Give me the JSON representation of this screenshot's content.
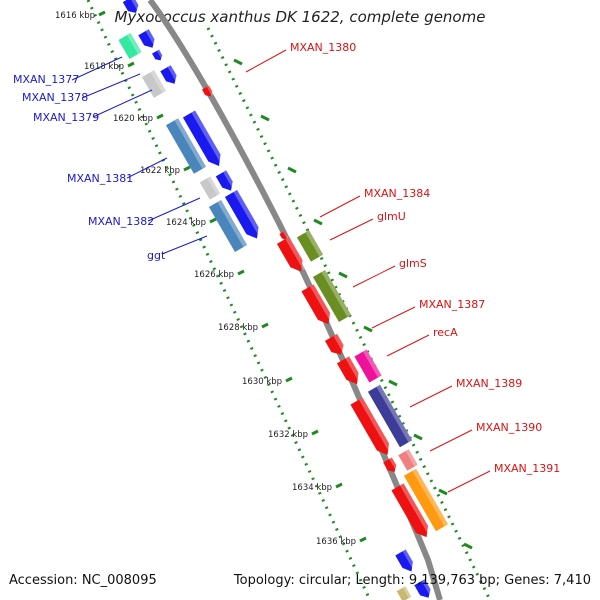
{
  "title": "Myxococcus xanthus DK 1622, complete genome",
  "footer": {
    "accession": "Accession: NC_008095",
    "summary": "Topology: circular; Length: 9,139,763 bp; Genes: 7,410"
  },
  "ruler": [
    "1616 kbp",
    "1618 kbp",
    "1620 kbp",
    "1622 kbp",
    "1624 kbp",
    "1626 kbp",
    "1628 kbp",
    "1630 kbp",
    "1632 kbp",
    "1634 kbp",
    "1636 kbp"
  ],
  "left_gene_labels": [
    "MXAN_1377",
    "MXAN_1378",
    "MXAN_1379",
    "MXAN_1381",
    "MXAN_1382",
    "ggt"
  ],
  "right_gene_labels": [
    "MXAN_1380",
    "MXAN_1384",
    "glmU",
    "glmS",
    "MXAN_1387",
    "recA",
    "MXAN_1389",
    "MXAN_1390",
    "MXAN_1391"
  ],
  "colors": {
    "backbone": "#888888",
    "ruler_dots": "#1f8a1f",
    "left_label": "#1a1acc",
    "right_label": "#dd1111",
    "blue": "#1a1aee",
    "steel": "#4a86bb",
    "grey": "#c8c8c8",
    "aqua": "#33e8a0",
    "red": "#ee1111",
    "olive": "#6b8e23",
    "magenta": "#ee1199",
    "slate": "#3c3c99",
    "pink": "#f08080",
    "orange": "#ff9910",
    "khaki": "#c8b870"
  }
}
